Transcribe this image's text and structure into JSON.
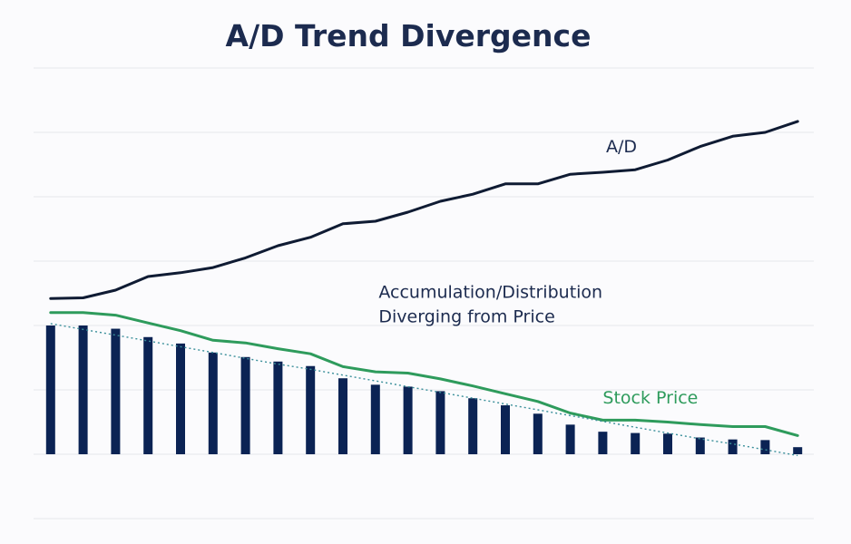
{
  "chart_data": {
    "type": "bar",
    "title": "A/D Trend Divergence",
    "xlabel": "",
    "ylabel": "",
    "ylim": [
      -1,
      6
    ],
    "grid": true,
    "legend": "none",
    "x": [
      1,
      2,
      3,
      4,
      5,
      6,
      7,
      8,
      9,
      10,
      11,
      12,
      13,
      14,
      15,
      16,
      17,
      18,
      19,
      20,
      21,
      22,
      23,
      24
    ],
    "series": [
      {
        "kind": "bar",
        "values": [
          2.0,
          2.0,
          1.95,
          1.82,
          1.72,
          1.58,
          1.51,
          1.44,
          1.37,
          1.18,
          1.08,
          1.05,
          0.98,
          0.87,
          0.76,
          0.63,
          0.46,
          0.35,
          0.33,
          0.32,
          0.26,
          0.23,
          0.22,
          0.11
        ]
      },
      {
        "kind": "line",
        "name": "A/D",
        "values": [
          2.42,
          2.43,
          2.55,
          2.76,
          2.82,
          2.9,
          3.05,
          3.24,
          3.37,
          3.58,
          3.62,
          3.76,
          3.93,
          4.04,
          4.2,
          4.2,
          4.35,
          4.38,
          4.42,
          4.57,
          4.78,
          4.94,
          5.0,
          5.17
        ]
      },
      {
        "kind": "line",
        "name": "Stock Price",
        "values": [
          2.2,
          2.2,
          2.16,
          2.04,
          1.92,
          1.77,
          1.73,
          1.64,
          1.56,
          1.36,
          1.28,
          1.26,
          1.17,
          1.06,
          0.94,
          0.82,
          0.64,
          0.53,
          0.53,
          0.5,
          0.46,
          0.43,
          0.43,
          0.29
        ]
      },
      {
        "kind": "trendline",
        "values": [
          2.03,
          1.94,
          1.85,
          1.76,
          1.67,
          1.58,
          1.49,
          1.4,
          1.32,
          1.23,
          1.14,
          1.05,
          0.96,
          0.87,
          0.78,
          0.69,
          0.6,
          0.51,
          0.42,
          0.33,
          0.24,
          0.16,
          0.07,
          -0.02
        ]
      }
    ],
    "annotations": [
      {
        "text": "A/D",
        "x": 18.1,
        "y": 4.69,
        "color": "dark"
      },
      {
        "text": "Accumulation/Distribution",
        "x": 11.1,
        "y": 2.43,
        "color": "dark"
      },
      {
        "text": "Diverging from Price",
        "x": 11.1,
        "y": 2.05,
        "color": "dark"
      },
      {
        "text": "Stock Price",
        "x": 18.0,
        "y": 0.79,
        "color": "green"
      }
    ]
  }
}
